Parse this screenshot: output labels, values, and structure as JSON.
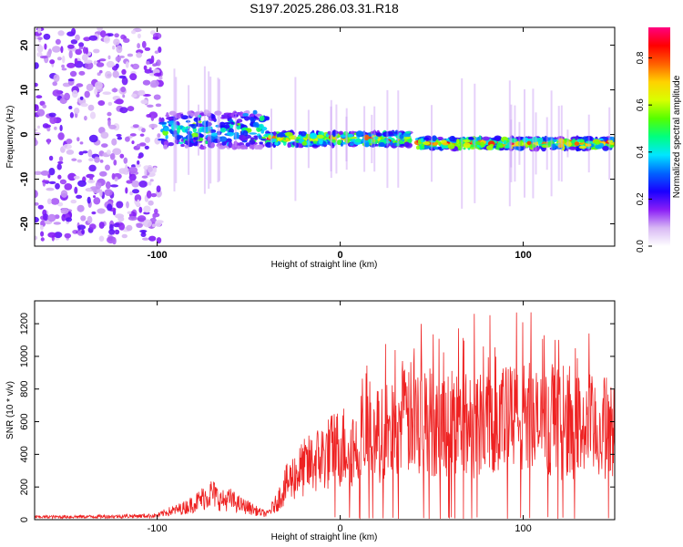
{
  "title": "S197.2025.286.03.31.R18",
  "chart_data": [
    {
      "type": "heatmap",
      "xlabel": "Height of straight line (km)",
      "ylabel": "Frequency (Hz)",
      "xlim": [
        -167,
        150
      ],
      "ylim": [
        -25,
        24
      ],
      "xticks": [
        -100,
        0,
        100
      ],
      "yticks": [
        20,
        10,
        0,
        -10,
        -20
      ],
      "colorbar": {
        "label": "Normalized spectral amplitude",
        "range": [
          0.0,
          0.93
        ],
        "ticks": [
          "0.0",
          "0.2",
          "0.4",
          "0.6",
          "0.8"
        ],
        "tick_values": [
          0.0,
          0.2,
          0.4,
          0.6,
          0.8
        ],
        "colormap": [
          "#ffffff",
          "#d8b8f4",
          "#8a1ef6",
          "#1a00ff",
          "#0064ff",
          "#00e6ff",
          "#00ff80",
          "#55ff00",
          "#d8ff00",
          "#ffd200",
          "#ff6000",
          "#ff0000",
          "#ff0080"
        ]
      },
      "bands": [
        {
          "x_range": [
            -167,
            -98
          ],
          "freq_center": 0,
          "freq_spread": 24,
          "amplitude": 0.18,
          "note": "scattered noise"
        },
        {
          "x_range": [
            -98,
            -40
          ],
          "freq_center": 1,
          "freq_spread": 4,
          "amplitude": 0.45
        },
        {
          "x_range": [
            -40,
            38
          ],
          "freq_center": -1,
          "freq_spread": 1.5,
          "amplitude": 0.7
        },
        {
          "x_range": [
            42,
            150
          ],
          "freq_center": -2,
          "freq_spread": 1.2,
          "amplitude": 0.8
        }
      ]
    },
    {
      "type": "line",
      "xlabel": "Height of straight line (km)",
      "ylabel": "SNR (10 * v/v)",
      "xlim": [
        -167,
        150
      ],
      "ylim": [
        0,
        1340
      ],
      "xticks": [
        -100,
        0,
        100
      ],
      "yticks": [
        0,
        200,
        400,
        600,
        800,
        1000,
        1200
      ],
      "series": [
        {
          "name": "SNR",
          "color": "#ee2222",
          "x": [
            -167,
            -140,
            -120,
            -100,
            -95,
            -90,
            -85,
            -80,
            -75,
            -70,
            -65,
            -60,
            -55,
            -50,
            -45,
            -40,
            -35,
            -30,
            -25,
            -20,
            -15,
            -10,
            -5,
            0,
            5,
            10,
            15,
            20,
            25,
            30,
            35,
            40,
            45,
            50,
            55,
            60,
            65,
            70,
            75,
            80,
            85,
            90,
            95,
            100,
            105,
            110,
            115,
            120,
            125,
            130,
            135,
            140,
            145,
            150
          ],
          "y": [
            20,
            22,
            25,
            30,
            55,
            70,
            90,
            120,
            160,
            200,
            140,
            150,
            110,
            90,
            60,
            40,
            120,
            250,
            330,
            380,
            420,
            470,
            500,
            540,
            560,
            520,
            600,
            620,
            640,
            700,
            720,
            760,
            780,
            720,
            700,
            740,
            720,
            700,
            740,
            780,
            760,
            730,
            740,
            760,
            720,
            700,
            720,
            680,
            700,
            690,
            700,
            660,
            680,
            650
          ]
        }
      ]
    }
  ]
}
